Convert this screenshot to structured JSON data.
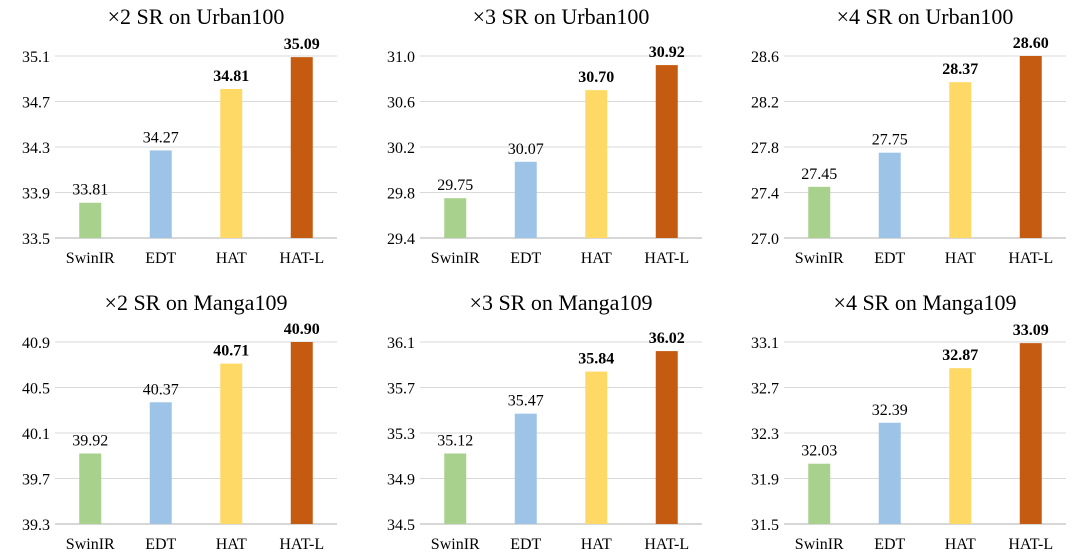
{
  "colors": {
    "bars": [
      "#a9d18e",
      "#9dc3e6",
      "#ffd966",
      "#c55a11"
    ],
    "gridline": "#d9d9d9",
    "axis": "#bfbfbf",
    "text": "#000000"
  },
  "chart_data": [
    {
      "type": "bar",
      "title": "×2 SR on Urban100",
      "categories": [
        "SwinIR",
        "EDT",
        "HAT",
        "HAT-L"
      ],
      "values": [
        33.81,
        34.27,
        34.81,
        35.09
      ],
      "value_labels": [
        "33.81",
        "34.27",
        "34.81",
        "35.09"
      ],
      "bold_labels": [
        false,
        false,
        true,
        true
      ],
      "ylim": [
        33.5,
        35.1
      ],
      "yticks": [
        33.5,
        33.9,
        34.3,
        34.7,
        35.1
      ],
      "ytick_labels": [
        "33.5",
        "33.9",
        "34.3",
        "34.7",
        "35.1"
      ],
      "grid": true,
      "xlabel": "",
      "ylabel": ""
    },
    {
      "type": "bar",
      "title": "×3 SR on Urban100",
      "categories": [
        "SwinIR",
        "EDT",
        "HAT",
        "HAT-L"
      ],
      "values": [
        29.75,
        30.07,
        30.7,
        30.92
      ],
      "value_labels": [
        "29.75",
        "30.07",
        "30.70",
        "30.92"
      ],
      "bold_labels": [
        false,
        false,
        true,
        true
      ],
      "ylim": [
        29.4,
        31.0
      ],
      "yticks": [
        29.4,
        29.8,
        30.2,
        30.6,
        31.0
      ],
      "ytick_labels": [
        "29.4",
        "29.8",
        "30.2",
        "30.6",
        "31.0"
      ],
      "grid": true,
      "xlabel": "",
      "ylabel": ""
    },
    {
      "type": "bar",
      "title": "×4 SR on Urban100",
      "categories": [
        "SwinIR",
        "EDT",
        "HAT",
        "HAT-L"
      ],
      "values": [
        27.45,
        27.75,
        28.37,
        28.6
      ],
      "value_labels": [
        "27.45",
        "27.75",
        "28.37",
        "28.60"
      ],
      "bold_labels": [
        false,
        false,
        true,
        true
      ],
      "ylim": [
        27.0,
        28.6
      ],
      "yticks": [
        27.0,
        27.4,
        27.8,
        28.2,
        28.6
      ],
      "ytick_labels": [
        "27.0",
        "27.4",
        "27.8",
        "28.2",
        "28.6"
      ],
      "grid": true,
      "xlabel": "",
      "ylabel": ""
    },
    {
      "type": "bar",
      "title": "×2 SR on Manga109",
      "categories": [
        "SwinIR",
        "EDT",
        "HAT",
        "HAT-L"
      ],
      "values": [
        39.92,
        40.37,
        40.71,
        40.9
      ],
      "value_labels": [
        "39.92",
        "40.37",
        "40.71",
        "40.90"
      ],
      "bold_labels": [
        false,
        false,
        true,
        true
      ],
      "ylim": [
        39.3,
        40.9
      ],
      "yticks": [
        39.3,
        39.7,
        40.1,
        40.5,
        40.9
      ],
      "ytick_labels": [
        "39.3",
        "39.7",
        "40.1",
        "40.5",
        "40.9"
      ],
      "grid": true,
      "xlabel": "",
      "ylabel": ""
    },
    {
      "type": "bar",
      "title": "×3 SR on Manga109",
      "categories": [
        "SwinIR",
        "EDT",
        "HAT",
        "HAT-L"
      ],
      "values": [
        35.12,
        35.47,
        35.84,
        36.02
      ],
      "value_labels": [
        "35.12",
        "35.47",
        "35.84",
        "36.02"
      ],
      "bold_labels": [
        false,
        false,
        true,
        true
      ],
      "ylim": [
        34.5,
        36.1
      ],
      "yticks": [
        34.5,
        34.9,
        35.3,
        35.7,
        36.1
      ],
      "ytick_labels": [
        "34.5",
        "34.9",
        "35.3",
        "35.7",
        "36.1"
      ],
      "grid": true,
      "xlabel": "",
      "ylabel": ""
    },
    {
      "type": "bar",
      "title": "×4 SR on Manga109",
      "categories": [
        "SwinIR",
        "EDT",
        "HAT",
        "HAT-L"
      ],
      "values": [
        32.03,
        32.39,
        32.87,
        33.09
      ],
      "value_labels": [
        "32.03",
        "32.39",
        "32.87",
        "33.09"
      ],
      "bold_labels": [
        false,
        false,
        true,
        true
      ],
      "ylim": [
        31.5,
        33.1
      ],
      "yticks": [
        31.5,
        31.9,
        32.3,
        32.7,
        33.1
      ],
      "ytick_labels": [
        "31.5",
        "31.9",
        "32.3",
        "32.7",
        "33.1"
      ],
      "grid": true,
      "xlabel": "",
      "ylabel": ""
    }
  ]
}
